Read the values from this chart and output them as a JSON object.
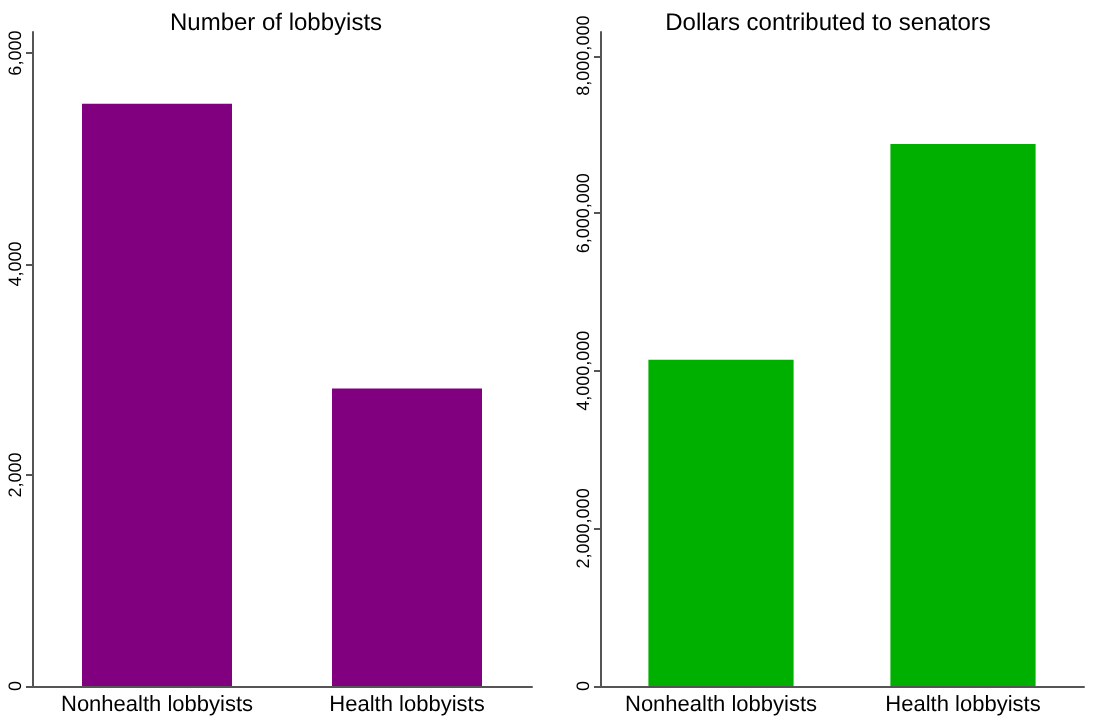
{
  "chart_data": [
    {
      "type": "bar",
      "title": "Number of lobbyists",
      "categories": [
        "Nonhealth lobbyists",
        "Health lobbyists"
      ],
      "values": [
        5520,
        2820
      ],
      "color": "#800080",
      "ylim": [
        0,
        6200
      ],
      "yticks": [
        {
          "value": 0,
          "label": "0"
        },
        {
          "value": 2000,
          "label": "2,000"
        },
        {
          "value": 4000,
          "label": "4,000"
        },
        {
          "value": 6000,
          "label": "6,000"
        }
      ],
      "grid": false
    },
    {
      "type": "bar",
      "title": "Dollars contributed to senators",
      "categories": [
        "Nonhealth lobbyists",
        "Health lobbyists"
      ],
      "values": [
        4140000,
        6880000
      ],
      "color": "#00b000",
      "ylim": [
        0,
        8300000
      ],
      "yticks": [
        {
          "value": 0,
          "label": "0"
        },
        {
          "value": 2000000,
          "label": "2,000,000"
        },
        {
          "value": 4000000,
          "label": "4,000,000"
        },
        {
          "value": 6000000,
          "label": "6,000,000"
        },
        {
          "value": 8000000,
          "label": "8,000,000"
        }
      ],
      "grid": false
    }
  ]
}
